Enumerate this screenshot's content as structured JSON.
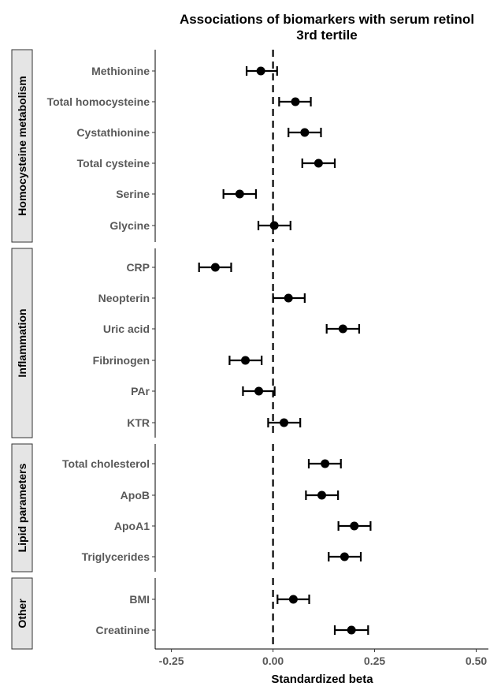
{
  "chart_data": {
    "type": "scatter",
    "variant": "forest-plot",
    "title_lines": [
      "Associations of biomarkers with serum retinol",
      "3rd tertile"
    ],
    "xlabel": "Standardized beta",
    "ylabel": "",
    "xlim": [
      -0.29,
      0.53
    ],
    "x_ticks": [
      -0.25,
      0.0,
      0.25,
      0.5
    ],
    "x_tick_labels": [
      "-0.25",
      "0.00",
      "0.25",
      "0.50"
    ],
    "reference_line": 0.0,
    "grid": false,
    "groups": [
      {
        "name": "Homocysteine metabolism",
        "items": [
          {
            "label": "Methionine",
            "estimate": -0.03,
            "lower": -0.065,
            "upper": 0.01
          },
          {
            "label": "Total homocysteine",
            "estimate": 0.055,
            "lower": 0.015,
            "upper": 0.093
          },
          {
            "label": "Cystathionine",
            "estimate": 0.078,
            "lower": 0.038,
            "upper": 0.118
          },
          {
            "label": "Total cysteine",
            "estimate": 0.112,
            "lower": 0.072,
            "upper": 0.152
          },
          {
            "label": "Serine",
            "estimate": -0.082,
            "lower": -0.122,
            "upper": -0.042
          },
          {
            "label": "Glycine",
            "estimate": 0.003,
            "lower": -0.036,
            "upper": 0.043
          }
        ]
      },
      {
        "name": "Inflammation",
        "items": [
          {
            "label": "CRP",
            "estimate": -0.142,
            "lower": -0.182,
            "upper": -0.103
          },
          {
            "label": "Neopterin",
            "estimate": 0.038,
            "lower": 0.0,
            "upper": 0.078
          },
          {
            "label": "Uric acid",
            "estimate": 0.172,
            "lower": 0.132,
            "upper": 0.212
          },
          {
            "label": "Fibrinogen",
            "estimate": -0.068,
            "lower": -0.107,
            "upper": -0.028
          },
          {
            "label": "PAr",
            "estimate": -0.035,
            "lower": -0.074,
            "upper": 0.004
          },
          {
            "label": "KTR",
            "estimate": 0.027,
            "lower": -0.012,
            "upper": 0.067
          }
        ]
      },
      {
        "name": "Lipid parameters",
        "items": [
          {
            "label": "Total cholesterol",
            "estimate": 0.128,
            "lower": 0.088,
            "upper": 0.167
          },
          {
            "label": "ApoB",
            "estimate": 0.12,
            "lower": 0.081,
            "upper": 0.16
          },
          {
            "label": "ApoA1",
            "estimate": 0.2,
            "lower": 0.161,
            "upper": 0.24
          },
          {
            "label": "Triglycerides",
            "estimate": 0.176,
            "lower": 0.137,
            "upper": 0.216
          }
        ]
      },
      {
        "name": "Other",
        "items": [
          {
            "label": "BMI",
            "estimate": 0.05,
            "lower": 0.011,
            "upper": 0.089
          },
          {
            "label": "Creatinine",
            "estimate": 0.193,
            "lower": 0.152,
            "upper": 0.234
          }
        ]
      }
    ],
    "colors": {
      "point": "#000000",
      "errorbar": "#000000",
      "reference_line": "#000000",
      "tick_label": "#595959",
      "strip_fill": "#e5e5e5",
      "strip_border": "#333333"
    }
  }
}
